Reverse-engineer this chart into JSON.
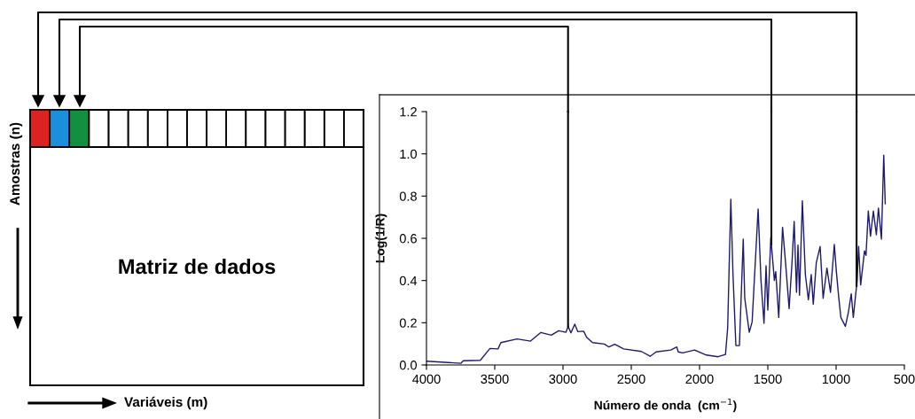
{
  "chart_data": [
    {
      "type": "other",
      "annotations": [
        "Amostras (n)",
        "Matriz de dados",
        "Variáveis (m)"
      ]
    },
    {
      "type": "line",
      "xlabel": "Número de onda  (cm$^{−1}$)",
      "ylabel": "Log(1/R)",
      "ref_lines": [
        {
          "axis": "x",
          "value": 850,
          "color": "#000000"
        },
        {
          "axis": "x",
          "value": 1474,
          "color": "#000000"
        },
        {
          "axis": "x",
          "value": 2963,
          "color": "#000000"
        }
      ],
      "xlim": [
        4000,
        500
      ],
      "xticks": [
        4000,
        3500,
        3000,
        2500,
        2000,
        1500,
        1000,
        500
      ],
      "ylim": [
        0,
        1.2
      ],
      "yticks": [
        {
          "value": 0,
          "label": "0.0"
        },
        {
          "value": 0.2,
          "label": "0.2"
        },
        {
          "value": 0.4,
          "label": "0.4"
        },
        {
          "value": 0.6,
          "label": "0.6"
        },
        {
          "value": 0.8,
          "label": "0.8"
        },
        {
          "value": 1.0,
          "label": "1.0"
        },
        {
          "value": 1.2,
          "label": "1.2"
        }
      ],
      "grid": false,
      "marker": "none",
      "line_style": "solid",
      "series": [
        {
          "color": "#1f1a6e",
          "x": [
            4000,
            3747,
            3730,
            3606,
            3535,
            3476,
            3455,
            3336,
            3238,
            3162,
            3086,
            3032,
            2978,
            2963,
            2942,
            2914,
            2892,
            2849,
            2827,
            2784,
            2697,
            2664,
            2621,
            2556,
            2426,
            2362,
            2318,
            2210,
            2167,
            2156,
            2123,
            2037,
            1950,
            1864,
            1810,
            1794,
            1771,
            1755,
            1734,
            1708,
            1680,
            1669,
            1636,
            1615,
            1571,
            1550,
            1528,
            1513,
            1500,
            1478,
            1452,
            1442,
            1420,
            1392,
            1370,
            1344,
            1323,
            1307,
            1290,
            1279,
            1268,
            1247,
            1225,
            1203,
            1182,
            1167,
            1145,
            1117,
            1095,
            1067,
            1041,
            1013,
            998,
            980,
            965,
            932,
            911,
            889,
            874,
            846,
            835,
            820,
            792,
            781,
            764,
            748,
            727,
            705,
            690,
            668,
            651,
            640
          ],
          "values": [
            0.018,
            0.008,
            0.02,
            0.022,
            0.078,
            0.076,
            0.106,
            0.123,
            0.113,
            0.154,
            0.141,
            0.162,
            0.155,
            0.183,
            0.152,
            0.193,
            0.158,
            0.16,
            0.131,
            0.106,
            0.099,
            0.085,
            0.098,
            0.076,
            0.064,
            0.041,
            0.062,
            0.071,
            0.085,
            0.062,
            0.057,
            0.071,
            0.047,
            0.039,
            0.05,
            0.176,
            0.785,
            0.428,
            0.092,
            0.092,
            0.596,
            0.316,
            0.155,
            0.204,
            0.739,
            0.4,
            0.197,
            0.47,
            0.26,
            0.603,
            0.4,
            0.442,
            0.225,
            0.652,
            0.484,
            0.267,
            0.484,
            0.68,
            0.344,
            0.568,
            0.33,
            0.778,
            0.428,
            0.309,
            0.428,
            0.288,
            0.484,
            0.561,
            0.316,
            0.459,
            0.344,
            0.571,
            0.442,
            0.316,
            0.225,
            0.183,
            0.246,
            0.337,
            0.225,
            0.4,
            0.561,
            0.379,
            0.54,
            0.519,
            0.729,
            0.61,
            0.729,
            0.617,
            0.743,
            0.596,
            0.994,
            0.764
          ]
        }
      ]
    }
  ]
}
